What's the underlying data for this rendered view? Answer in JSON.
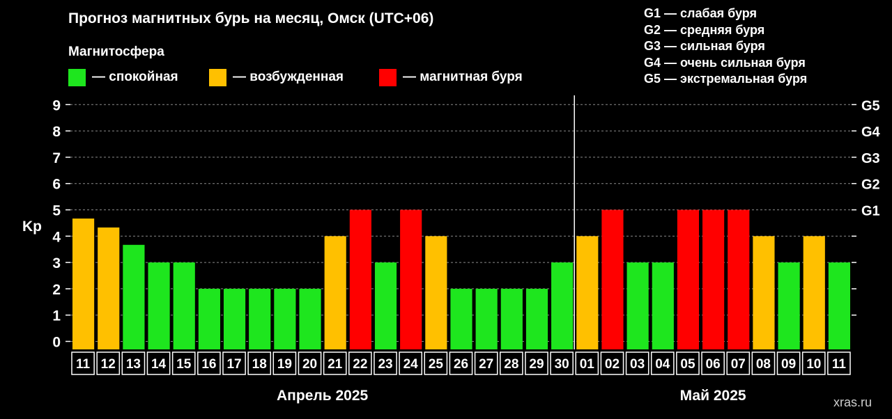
{
  "header": {
    "title": "Прогноз магнитных бурь на месяц, Омск (UTC+06)",
    "subtitle": "Магнитосфера"
  },
  "legend": [
    {
      "label": "— спокойная",
      "color": "#1ee61e"
    },
    {
      "label": "— возбужденная",
      "color": "#ffc000"
    },
    {
      "label": "— магнитная буря",
      "color": "#ff0000"
    }
  ],
  "storm_levels": [
    "G1 — слабая буря",
    "G2 — средняя буря",
    "G3 — сильная буря",
    "G4 — очень сильная буря",
    "G5 — экстремальная буря"
  ],
  "watermark": "xras.ru",
  "chart_data": {
    "type": "bar",
    "ylabel": "Kp",
    "ylim": [
      0,
      9
    ],
    "yticks": [
      "0",
      "1",
      "2",
      "3",
      "4",
      "5",
      "6",
      "7",
      "8",
      "9"
    ],
    "y2ticks": [
      {
        "value": 5,
        "label": "G1"
      },
      {
        "value": 6,
        "label": "G2"
      },
      {
        "value": 7,
        "label": "G3"
      },
      {
        "value": 8,
        "label": "G4"
      },
      {
        "value": 9,
        "label": "G5"
      }
    ],
    "grid": true,
    "month_groups": [
      {
        "label": "Апрель 2025",
        "count": 20
      },
      {
        "label": "Май 2025",
        "count": 11
      }
    ],
    "categories": [
      "11",
      "12",
      "13",
      "14",
      "15",
      "16",
      "17",
      "18",
      "19",
      "20",
      "21",
      "22",
      "23",
      "24",
      "25",
      "26",
      "27",
      "28",
      "29",
      "30",
      "01",
      "02",
      "03",
      "04",
      "05",
      "06",
      "07",
      "08",
      "09",
      "10",
      "11"
    ],
    "values": [
      4.67,
      4.33,
      3.67,
      3,
      3,
      2,
      2,
      2,
      2,
      2,
      4,
      5,
      3,
      5,
      4,
      2,
      2,
      2,
      2,
      3,
      4,
      5,
      3,
      3,
      5,
      5,
      5,
      4,
      3,
      4,
      3
    ],
    "colors": {
      "quiet": "#1ee61e",
      "active": "#ffc000",
      "storm": "#ff0000"
    }
  }
}
